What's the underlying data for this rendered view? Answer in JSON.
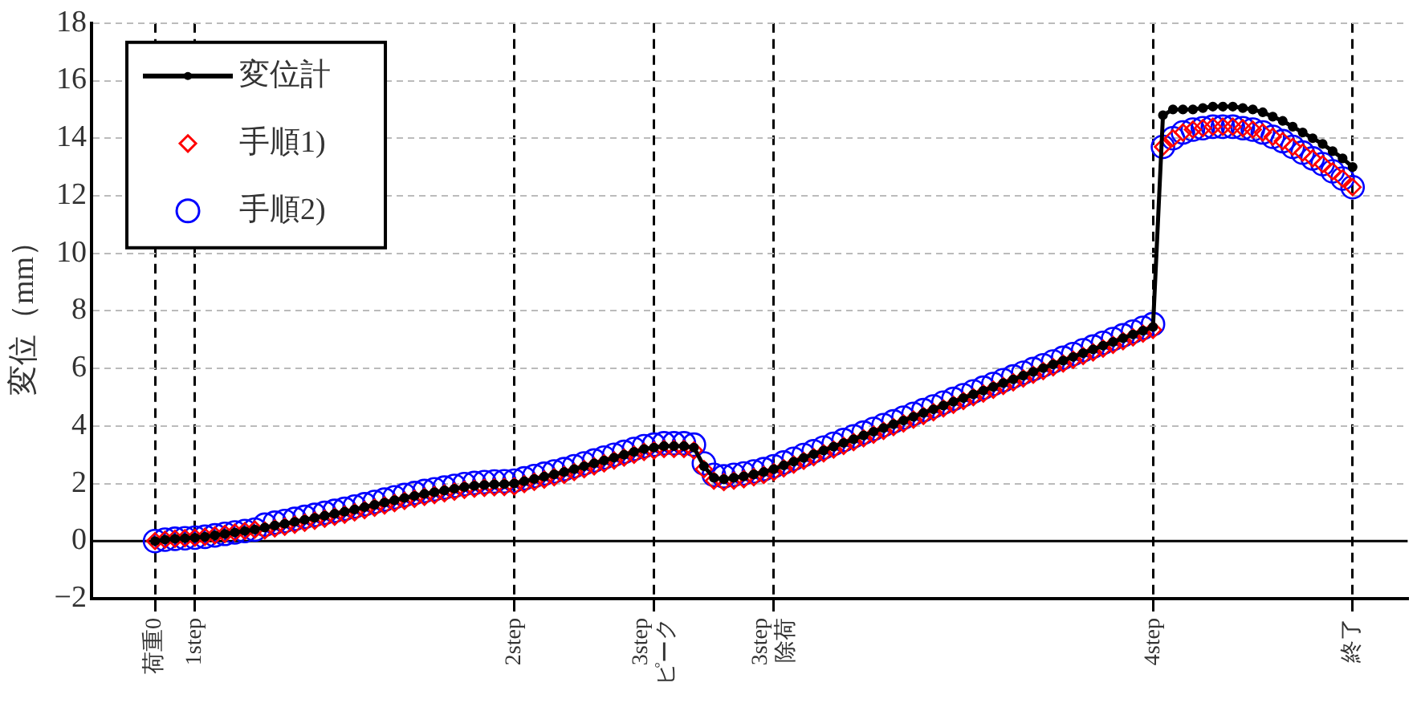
{
  "chart_data": {
    "type": "line",
    "ylabel": "変位（mm）",
    "categories": [
      "荷重0",
      null,
      null,
      null,
      "1step",
      null,
      null,
      null,
      null,
      null,
      null,
      null,
      null,
      null,
      null,
      null,
      null,
      null,
      null,
      null,
      null,
      null,
      null,
      null,
      null,
      null,
      null,
      null,
      null,
      null,
      null,
      null,
      null,
      null,
      null,
      null,
      "2step",
      null,
      null,
      null,
      null,
      null,
      null,
      null,
      null,
      null,
      null,
      null,
      null,
      null,
      "3step\nピーク",
      null,
      null,
      null,
      null,
      null,
      null,
      null,
      null,
      null,
      null,
      null,
      "3step\n除荷",
      null,
      null,
      null,
      null,
      null,
      null,
      null,
      null,
      null,
      null,
      null,
      null,
      null,
      null,
      null,
      null,
      null,
      null,
      null,
      null,
      null,
      null,
      null,
      null,
      null,
      null,
      null,
      null,
      null,
      null,
      null,
      null,
      null,
      null,
      null,
      null,
      null,
      "4step",
      null,
      null,
      null,
      null,
      null,
      null,
      null,
      null,
      null,
      null,
      null,
      null,
      null,
      null,
      null,
      null,
      null,
      null,
      null,
      "終了"
    ],
    "series": [
      {
        "name": "変位計",
        "type": "line",
        "color": "#000000",
        "marker": "circle",
        "values": [
          0,
          0.05,
          0.08,
          0.1,
          0.12,
          0.15,
          0.2,
          0.25,
          0.3,
          0.35,
          0.4,
          0.47,
          0.54,
          0.6,
          0.67,
          0.74,
          0.81,
          0.88,
          0.95,
          1.02,
          1.1,
          1.18,
          1.26,
          1.34,
          1.42,
          1.5,
          1.57,
          1.64,
          1.7,
          1.76,
          1.82,
          1.88,
          1.92,
          1.95,
          1.97,
          1.98,
          2.0,
          2.08,
          2.16,
          2.24,
          2.32,
          2.4,
          2.5,
          2.6,
          2.7,
          2.8,
          2.9,
          3.0,
          3.1,
          3.2,
          3.25,
          3.3,
          3.3,
          3.3,
          3.25,
          2.6,
          2.2,
          2.15,
          2.2,
          2.25,
          2.32,
          2.4,
          2.5,
          2.63,
          2.76,
          2.89,
          3.02,
          3.15,
          3.28,
          3.41,
          3.54,
          3.67,
          3.8,
          3.93,
          4.06,
          4.19,
          4.32,
          4.45,
          4.58,
          4.71,
          4.84,
          4.97,
          5.1,
          5.23,
          5.36,
          5.49,
          5.62,
          5.75,
          5.88,
          6.01,
          6.14,
          6.27,
          6.4,
          6.53,
          6.66,
          6.79,
          6.92,
          7.05,
          7.18,
          7.31,
          7.44,
          14.8,
          15.0,
          15.0,
          15.0,
          15.05,
          15.1,
          15.1,
          15.1,
          15.05,
          15.0,
          14.9,
          14.75,
          14.6,
          14.4,
          14.2,
          14.0,
          13.8,
          13.55,
          13.3,
          13.0
        ]
      },
      {
        "name": "手順1)",
        "type": "scatter",
        "color": "#ff0000",
        "marker": "diamond",
        "values": [
          0,
          0.05,
          0.08,
          0.1,
          0.12,
          0.15,
          0.2,
          0.25,
          0.3,
          0.35,
          0.4,
          0.37,
          0.44,
          0.5,
          0.57,
          0.64,
          0.71,
          0.78,
          0.85,
          0.92,
          1.0,
          1.08,
          1.16,
          1.24,
          1.32,
          1.4,
          1.47,
          1.54,
          1.6,
          1.66,
          1.72,
          1.78,
          1.82,
          1.85,
          1.87,
          1.88,
          1.9,
          1.98,
          2.06,
          2.14,
          2.22,
          2.3,
          2.4,
          2.5,
          2.6,
          2.7,
          2.8,
          2.9,
          3.0,
          3.1,
          3.15,
          3.2,
          3.2,
          3.2,
          3.15,
          2.5,
          2.1,
          2.05,
          2.1,
          2.15,
          2.22,
          2.3,
          2.4,
          2.53,
          2.66,
          2.79,
          2.92,
          3.05,
          3.18,
          3.31,
          3.44,
          3.57,
          3.7,
          3.83,
          3.96,
          4.09,
          4.22,
          4.35,
          4.48,
          4.61,
          4.74,
          4.87,
          5.0,
          5.13,
          5.26,
          5.39,
          5.52,
          5.65,
          5.78,
          5.91,
          6.04,
          6.17,
          6.3,
          6.43,
          6.56,
          6.69,
          6.82,
          6.95,
          7.08,
          7.21,
          7.34,
          13.7,
          14.0,
          14.2,
          14.3,
          14.35,
          14.4,
          14.4,
          14.4,
          14.35,
          14.3,
          14.2,
          14.05,
          13.9,
          13.7,
          13.5,
          13.3,
          13.1,
          12.85,
          12.6,
          12.3
        ]
      },
      {
        "name": "手順2)",
        "type": "scatter",
        "color": "#0000ff",
        "marker": "circle",
        "values": [
          0,
          0.05,
          0.08,
          0.1,
          0.12,
          0.15,
          0.2,
          0.25,
          0.3,
          0.35,
          0.4,
          0.57,
          0.64,
          0.7,
          0.77,
          0.84,
          0.91,
          0.98,
          1.05,
          1.12,
          1.2,
          1.28,
          1.36,
          1.44,
          1.52,
          1.6,
          1.67,
          1.74,
          1.8,
          1.86,
          1.92,
          1.98,
          2.02,
          2.05,
          2.07,
          2.08,
          2.1,
          2.18,
          2.26,
          2.34,
          2.42,
          2.5,
          2.6,
          2.7,
          2.8,
          2.9,
          3.0,
          3.1,
          3.2,
          3.3,
          3.35,
          3.4,
          3.4,
          3.4,
          3.35,
          2.7,
          2.3,
          2.25,
          2.3,
          2.35,
          2.42,
          2.5,
          2.6,
          2.73,
          2.86,
          2.99,
          3.12,
          3.25,
          3.38,
          3.51,
          3.64,
          3.77,
          3.9,
          4.03,
          4.16,
          4.29,
          4.42,
          4.55,
          4.68,
          4.81,
          4.94,
          5.07,
          5.2,
          5.33,
          5.46,
          5.59,
          5.72,
          5.85,
          5.98,
          6.11,
          6.24,
          6.37,
          6.5,
          6.63,
          6.76,
          6.89,
          7.02,
          7.15,
          7.28,
          7.41,
          7.54,
          13.7,
          14.0,
          14.2,
          14.3,
          14.35,
          14.4,
          14.4,
          14.4,
          14.35,
          14.3,
          14.2,
          14.05,
          13.9,
          13.7,
          13.5,
          13.3,
          13.1,
          12.85,
          12.6,
          12.3
        ]
      }
    ],
    "ylim": [
      -2,
      18
    ],
    "yticks": [
      -2,
      0,
      2,
      4,
      6,
      8,
      10,
      12,
      14,
      16,
      18
    ],
    "ref_lines": [
      {
        "axis": "y",
        "value": 0,
        "color": "#000000",
        "line_style": "solid"
      }
    ],
    "grid": true,
    "legend": "top left"
  }
}
